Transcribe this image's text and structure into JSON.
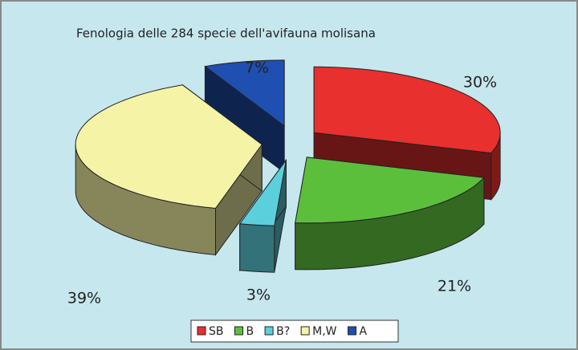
{
  "chart_data": {
    "type": "pie",
    "title": "Fenologia delle 284 specie dell'avifauna molisana",
    "categories": [
      "SB",
      "B",
      "B?",
      "M,W",
      "A"
    ],
    "values": [
      30,
      21,
      3,
      39,
      7
    ],
    "value_labels": [
      "30%",
      "21%",
      "3%",
      "39%",
      "7%"
    ],
    "colors": [
      "#e8302e",
      "#5cbf3c",
      "#5ccfdc",
      "#f5f3a6",
      "#1f4fb0"
    ],
    "legend": "bottom"
  }
}
